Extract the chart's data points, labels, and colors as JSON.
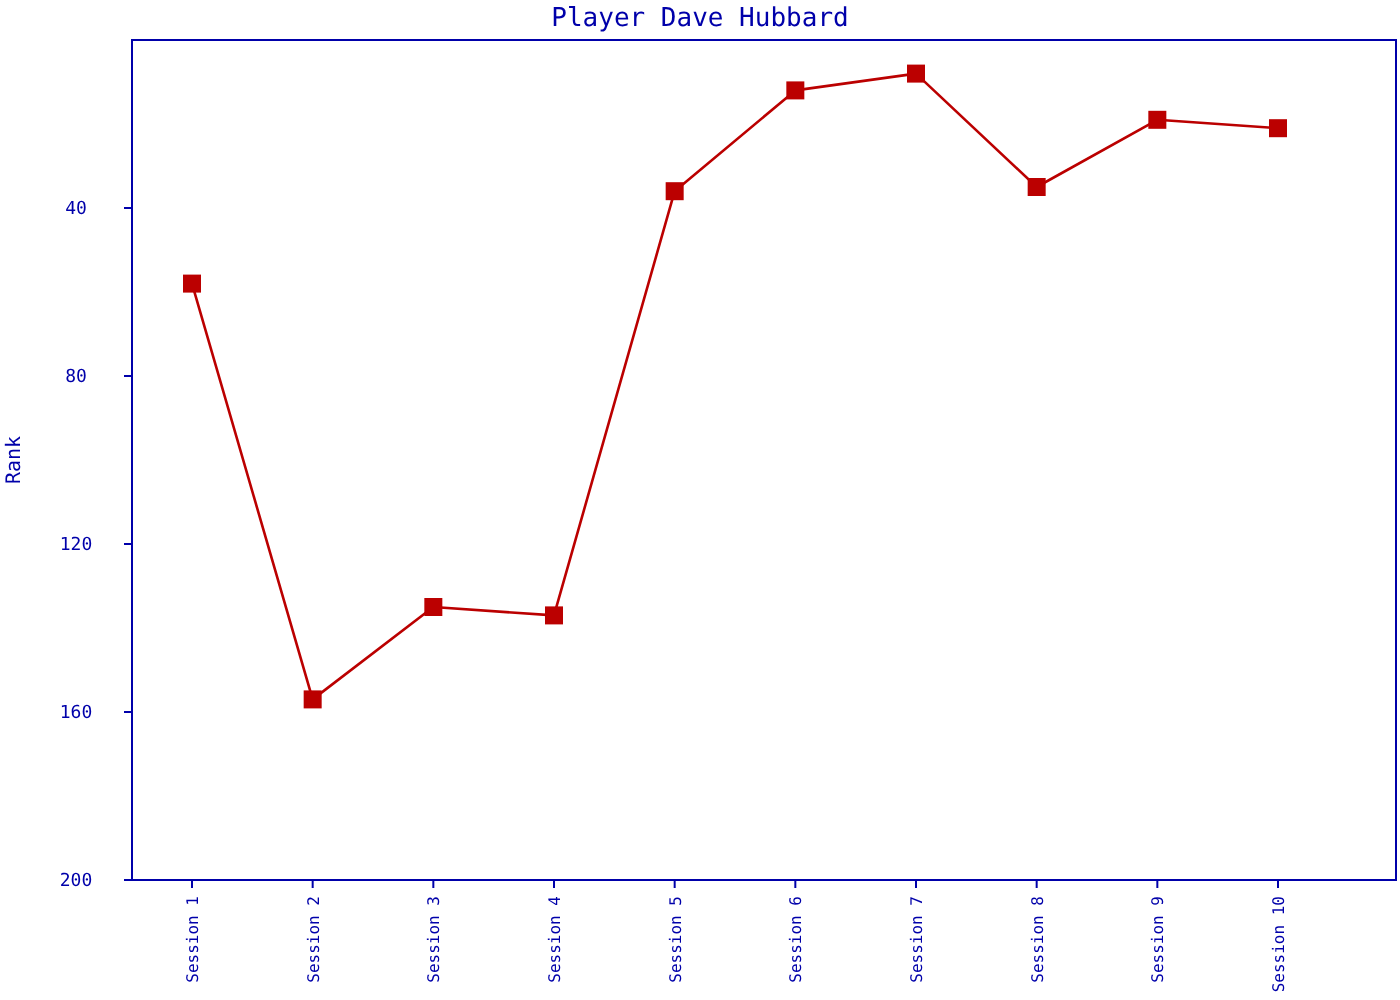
{
  "chart_data": {
    "type": "line",
    "title": "Player Dave Hubbard",
    "ylabel": "Rank",
    "categories": [
      "Session 1",
      "Session 2",
      "Session 3",
      "Session 4",
      "Session 5",
      "Session 6",
      "Session 7",
      "Session 8",
      "Session 9",
      "Session 10"
    ],
    "series": [
      {
        "color": "#bb0000",
        "values": [
          58,
          157,
          135,
          137,
          36,
          12,
          8,
          35,
          19,
          21
        ]
      }
    ],
    "ylim": [
      200,
      0
    ],
    "yticks": [
      40,
      80,
      120,
      160,
      200
    ],
    "grid": false,
    "marker": "square",
    "line_style": "solid"
  }
}
